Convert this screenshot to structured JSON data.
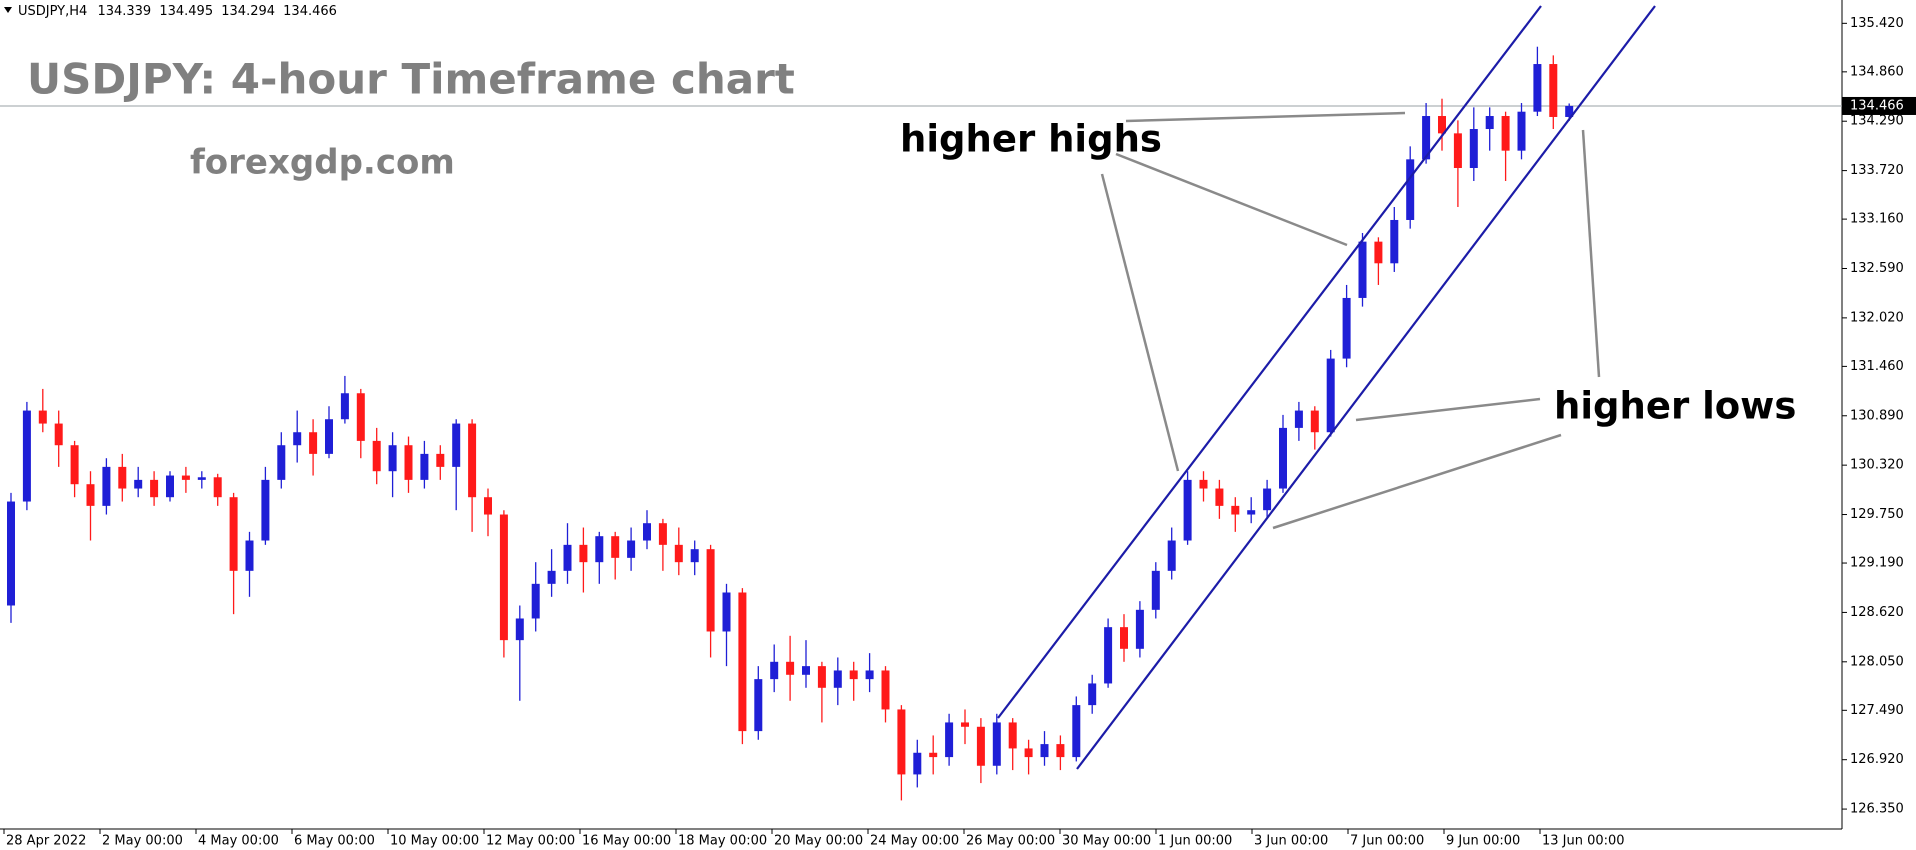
{
  "chart_data": {
    "type": "candlestick",
    "symbol": "USDJPY,H4",
    "title": "USDJPY: 4-hour Timeframe chart",
    "watermark": "forexgdp.com",
    "annotations": [
      "higher highs",
      "higher lows"
    ],
    "up_color": "#1f1fd6",
    "down_color": "#ff1a1a",
    "ylim": [
      126.12,
      135.62
    ],
    "yticks": [
      {
        "value": 135.42,
        "label": "135.420"
      },
      {
        "value": 134.86,
        "label": "134.860"
      },
      {
        "value": 134.29,
        "label": "134.290"
      },
      {
        "value": 133.72,
        "label": "133.720"
      },
      {
        "value": 133.16,
        "label": "133.160"
      },
      {
        "value": 132.59,
        "label": "132.590"
      },
      {
        "value": 132.02,
        "label": "132.020"
      },
      {
        "value": 131.46,
        "label": "131.460"
      },
      {
        "value": 130.89,
        "label": "130.890"
      },
      {
        "value": 130.32,
        "label": "130.320"
      },
      {
        "value": 129.75,
        "label": "129.750"
      },
      {
        "value": 129.19,
        "label": "129.190"
      },
      {
        "value": 128.62,
        "label": "128.620"
      },
      {
        "value": 128.05,
        "label": "128.050"
      },
      {
        "value": 127.49,
        "label": "127.490"
      },
      {
        "value": 126.92,
        "label": "126.920"
      },
      {
        "value": 126.35,
        "label": "126.350"
      }
    ],
    "xticks": [
      "28 Apr 2022",
      "2 May 00:00",
      "4 May 00:00",
      "6 May 00:00",
      "10 May 00:00",
      "12 May 00:00",
      "16 May 00:00",
      "18 May 00:00",
      "20 May 00:00",
      "24 May 00:00",
      "26 May 00:00",
      "30 May 00:00",
      "1 Jun 00:00",
      "3 Jun 00:00",
      "7 Jun 00:00",
      "9 Jun 00:00",
      "13 Jun 00:00"
    ],
    "candles": [
      {
        "open": 128.7,
        "high": 130.0,
        "low": 128.5,
        "close": 129.9
      },
      {
        "open": 129.9,
        "high": 131.05,
        "low": 129.8,
        "close": 130.95
      },
      {
        "open": 130.95,
        "high": 131.2,
        "low": 130.7,
        "close": 130.8
      },
      {
        "open": 130.8,
        "high": 130.95,
        "low": 130.3,
        "close": 130.55
      },
      {
        "open": 130.55,
        "high": 130.6,
        "low": 129.95,
        "close": 130.1
      },
      {
        "open": 130.1,
        "high": 130.25,
        "low": 129.45,
        "close": 129.85
      },
      {
        "open": 129.85,
        "high": 130.4,
        "low": 129.75,
        "close": 130.3
      },
      {
        "open": 130.3,
        "high": 130.45,
        "low": 129.9,
        "close": 130.05
      },
      {
        "open": 130.05,
        "high": 130.3,
        "low": 129.95,
        "close": 130.15
      },
      {
        "open": 130.15,
        "high": 130.25,
        "low": 129.85,
        "close": 129.95
      },
      {
        "open": 129.95,
        "high": 130.25,
        "low": 129.9,
        "close": 130.2
      },
      {
        "open": 130.2,
        "high": 130.3,
        "low": 130.0,
        "close": 130.15
      },
      {
        "open": 130.15,
        "high": 130.25,
        "low": 130.05,
        "close": 130.18
      },
      {
        "open": 130.18,
        "high": 130.22,
        "low": 129.85,
        "close": 129.95
      },
      {
        "open": 129.95,
        "high": 130.0,
        "low": 128.6,
        "close": 129.1
      },
      {
        "open": 129.1,
        "high": 129.55,
        "low": 128.8,
        "close": 129.45
      },
      {
        "open": 129.45,
        "high": 130.3,
        "low": 129.4,
        "close": 130.15
      },
      {
        "open": 130.15,
        "high": 130.7,
        "low": 130.05,
        "close": 130.55
      },
      {
        "open": 130.55,
        "high": 130.95,
        "low": 130.35,
        "close": 130.7
      },
      {
        "open": 130.7,
        "high": 130.85,
        "low": 130.2,
        "close": 130.45
      },
      {
        "open": 130.45,
        "high": 131.0,
        "low": 130.4,
        "close": 130.85
      },
      {
        "open": 130.85,
        "high": 131.35,
        "low": 130.8,
        "close": 131.15
      },
      {
        "open": 131.15,
        "high": 131.2,
        "low": 130.4,
        "close": 130.6
      },
      {
        "open": 130.6,
        "high": 130.75,
        "low": 130.1,
        "close": 130.25
      },
      {
        "open": 130.25,
        "high": 130.7,
        "low": 129.95,
        "close": 130.55
      },
      {
        "open": 130.55,
        "high": 130.65,
        "low": 130.0,
        "close": 130.15
      },
      {
        "open": 130.15,
        "high": 130.6,
        "low": 130.05,
        "close": 130.45
      },
      {
        "open": 130.45,
        "high": 130.55,
        "low": 130.15,
        "close": 130.3
      },
      {
        "open": 130.3,
        "high": 130.85,
        "low": 129.8,
        "close": 130.8
      },
      {
        "open": 130.8,
        "high": 130.85,
        "low": 129.55,
        "close": 129.95
      },
      {
        "open": 129.95,
        "high": 130.05,
        "low": 129.5,
        "close": 129.75
      },
      {
        "open": 129.75,
        "high": 129.8,
        "low": 128.1,
        "close": 128.3
      },
      {
        "open": 128.3,
        "high": 128.7,
        "low": 127.6,
        "close": 128.55
      },
      {
        "open": 128.55,
        "high": 129.2,
        "low": 128.4,
        "close": 128.95
      },
      {
        "open": 128.95,
        "high": 129.35,
        "low": 128.8,
        "close": 129.1
      },
      {
        "open": 129.1,
        "high": 129.65,
        "low": 128.95,
        "close": 129.4
      },
      {
        "open": 129.4,
        "high": 129.6,
        "low": 128.85,
        "close": 129.2
      },
      {
        "open": 129.2,
        "high": 129.55,
        "low": 128.95,
        "close": 129.5
      },
      {
        "open": 129.5,
        "high": 129.55,
        "low": 129.0,
        "close": 129.25
      },
      {
        "open": 129.25,
        "high": 129.6,
        "low": 129.1,
        "close": 129.45
      },
      {
        "open": 129.45,
        "high": 129.8,
        "low": 129.35,
        "close": 129.65
      },
      {
        "open": 129.65,
        "high": 129.7,
        "low": 129.1,
        "close": 129.4
      },
      {
        "open": 129.4,
        "high": 129.6,
        "low": 129.05,
        "close": 129.2
      },
      {
        "open": 129.2,
        "high": 129.45,
        "low": 129.05,
        "close": 129.35
      },
      {
        "open": 129.35,
        "high": 129.4,
        "low": 128.1,
        "close": 128.4
      },
      {
        "open": 128.4,
        "high": 128.95,
        "low": 128.0,
        "close": 128.85
      },
      {
        "open": 128.85,
        "high": 128.9,
        "low": 127.1,
        "close": 127.25
      },
      {
        "open": 127.25,
        "high": 128.0,
        "low": 127.15,
        "close": 127.85
      },
      {
        "open": 127.85,
        "high": 128.25,
        "low": 127.7,
        "close": 128.05
      },
      {
        "open": 128.05,
        "high": 128.35,
        "low": 127.6,
        "close": 127.9
      },
      {
        "open": 127.9,
        "high": 128.3,
        "low": 127.75,
        "close": 128.0
      },
      {
        "open": 128.0,
        "high": 128.05,
        "low": 127.35,
        "close": 127.75
      },
      {
        "open": 127.75,
        "high": 128.1,
        "low": 127.55,
        "close": 127.95
      },
      {
        "open": 127.95,
        "high": 128.05,
        "low": 127.6,
        "close": 127.85
      },
      {
        "open": 127.85,
        "high": 128.15,
        "low": 127.7,
        "close": 127.95
      },
      {
        "open": 127.95,
        "high": 128.0,
        "low": 127.35,
        "close": 127.5
      },
      {
        "open": 127.5,
        "high": 127.55,
        "low": 126.45,
        "close": 126.75
      },
      {
        "open": 126.75,
        "high": 127.15,
        "low": 126.6,
        "close": 127.0
      },
      {
        "open": 127.0,
        "high": 127.2,
        "low": 126.75,
        "close": 126.95
      },
      {
        "open": 126.95,
        "high": 127.45,
        "low": 126.85,
        "close": 127.35
      },
      {
        "open": 127.35,
        "high": 127.5,
        "low": 127.1,
        "close": 127.3
      },
      {
        "open": 127.3,
        "high": 127.4,
        "low": 126.65,
        "close": 126.85
      },
      {
        "open": 126.85,
        "high": 127.45,
        "low": 126.75,
        "close": 127.35
      },
      {
        "open": 127.35,
        "high": 127.4,
        "low": 126.8,
        "close": 127.05
      },
      {
        "open": 127.05,
        "high": 127.15,
        "low": 126.75,
        "close": 126.95
      },
      {
        "open": 126.95,
        "high": 127.25,
        "low": 126.85,
        "close": 127.1
      },
      {
        "open": 127.1,
        "high": 127.2,
        "low": 126.8,
        "close": 126.95
      },
      {
        "open": 126.95,
        "high": 127.65,
        "low": 126.9,
        "close": 127.55
      },
      {
        "open": 127.55,
        "high": 127.9,
        "low": 127.45,
        "close": 127.8
      },
      {
        "open": 127.8,
        "high": 128.55,
        "low": 127.75,
        "close": 128.45
      },
      {
        "open": 128.45,
        "high": 128.6,
        "low": 128.05,
        "close": 128.2
      },
      {
        "open": 128.2,
        "high": 128.75,
        "low": 128.1,
        "close": 128.65
      },
      {
        "open": 128.65,
        "high": 129.2,
        "low": 128.55,
        "close": 129.1
      },
      {
        "open": 129.1,
        "high": 129.6,
        "low": 129.0,
        "close": 129.45
      },
      {
        "open": 129.45,
        "high": 130.25,
        "low": 129.4,
        "close": 130.15
      },
      {
        "open": 130.15,
        "high": 130.25,
        "low": 129.9,
        "close": 130.05
      },
      {
        "open": 130.05,
        "high": 130.15,
        "low": 129.7,
        "close": 129.85
      },
      {
        "open": 129.85,
        "high": 129.95,
        "low": 129.55,
        "close": 129.75
      },
      {
        "open": 129.75,
        "high": 129.95,
        "low": 129.65,
        "close": 129.8
      },
      {
        "open": 129.8,
        "high": 130.15,
        "low": 129.7,
        "close": 130.05
      },
      {
        "open": 130.05,
        "high": 130.9,
        "low": 130.0,
        "close": 130.75
      },
      {
        "open": 130.75,
        "high": 131.05,
        "low": 130.6,
        "close": 130.95
      },
      {
        "open": 130.95,
        "high": 131.0,
        "low": 130.5,
        "close": 130.7
      },
      {
        "open": 130.7,
        "high": 131.65,
        "low": 130.65,
        "close": 131.55
      },
      {
        "open": 131.55,
        "high": 132.4,
        "low": 131.45,
        "close": 132.25
      },
      {
        "open": 132.25,
        "high": 133.0,
        "low": 132.15,
        "close": 132.9
      },
      {
        "open": 132.9,
        "high": 132.95,
        "low": 132.4,
        "close": 132.65
      },
      {
        "open": 132.65,
        "high": 133.3,
        "low": 132.55,
        "close": 133.15
      },
      {
        "open": 133.15,
        "high": 134.0,
        "low": 133.05,
        "close": 133.85
      },
      {
        "open": 133.85,
        "high": 134.5,
        "low": 133.8,
        "close": 134.35
      },
      {
        "open": 134.35,
        "high": 134.55,
        "low": 133.95,
        "close": 134.15
      },
      {
        "open": 134.15,
        "high": 134.3,
        "low": 133.3,
        "close": 133.75
      },
      {
        "open": 133.75,
        "high": 134.45,
        "low": 133.6,
        "close": 134.2
      },
      {
        "open": 134.2,
        "high": 134.45,
        "low": 133.95,
        "close": 134.35
      },
      {
        "open": 134.35,
        "high": 134.4,
        "low": 133.6,
        "close": 133.95
      },
      {
        "open": 133.95,
        "high": 134.5,
        "low": 133.85,
        "close": 134.4
      },
      {
        "open": 134.4,
        "high": 135.15,
        "low": 134.35,
        "close": 134.95
      },
      {
        "open": 134.95,
        "high": 135.05,
        "low": 134.2,
        "close": 134.339
      },
      {
        "open": 134.339,
        "high": 134.495,
        "low": 134.294,
        "close": 134.466
      }
    ]
  }
}
